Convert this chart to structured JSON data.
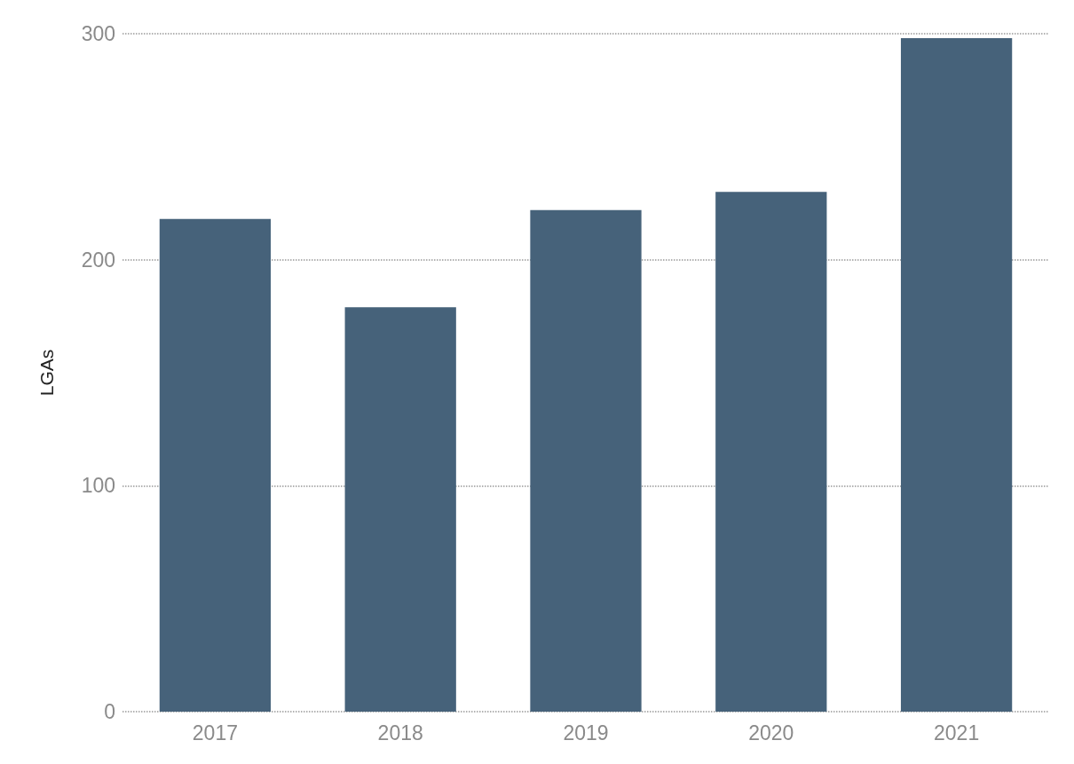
{
  "chart_data": {
    "type": "bar",
    "ylabel": "LGAs",
    "categories": [
      "2017",
      "2018",
      "2019",
      "2020",
      "2021"
    ],
    "values": [
      218,
      179,
      222,
      230,
      298
    ],
    "color": "#46627a",
    "ylim": [
      0,
      300
    ],
    "yticks": [
      0,
      100,
      200,
      300
    ],
    "grid": "y"
  }
}
